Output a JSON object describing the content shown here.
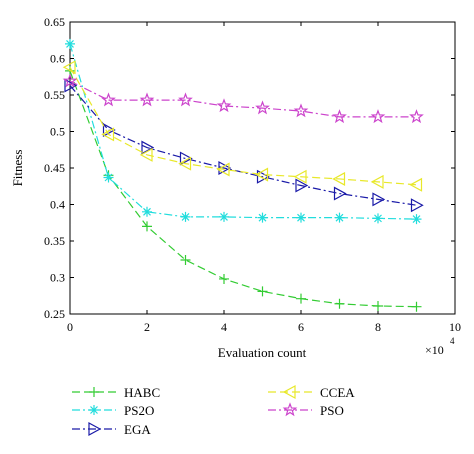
{
  "chart_data": {
    "type": "line",
    "title": "",
    "xlabel": "Evaluation count",
    "ylabel": "Fitness",
    "x_multiplier_label": "×10",
    "x_multiplier_exponent": "4",
    "xlim": [
      0,
      10
    ],
    "ylim": [
      0.25,
      0.65
    ],
    "x_ticks": [
      "0",
      "2",
      "4",
      "6",
      "8",
      "10"
    ],
    "y_ticks": [
      "0.25",
      "0.3",
      "0.35",
      "0.4",
      "0.45",
      "0.5",
      "0.55",
      "0.6",
      "0.65"
    ],
    "grid": false,
    "legend_position": "bottom",
    "series": [
      {
        "name": "HABC",
        "color": "#33cc33",
        "marker": "plus",
        "dash": "8,4",
        "x": [
          0,
          1,
          2,
          3,
          4,
          5,
          6,
          7,
          8,
          9
        ],
        "y": [
          0.583,
          0.44,
          0.37,
          0.324,
          0.298,
          0.281,
          0.271,
          0.264,
          0.261,
          0.26
        ]
      },
      {
        "name": "PS2O",
        "color": "#22dddd",
        "marker": "asterisk",
        "dash": "8,3,2,3",
        "x": [
          0,
          1,
          2,
          3,
          4,
          5,
          6,
          7,
          8,
          9
        ],
        "y": [
          0.62,
          0.437,
          0.39,
          0.383,
          0.383,
          0.382,
          0.382,
          0.382,
          0.381,
          0.38
        ]
      },
      {
        "name": "EGA",
        "color": "#1a1aa8",
        "marker": "triangle-right",
        "dash": "8,3,2,3",
        "x": [
          0,
          1,
          2,
          3,
          4,
          5,
          6,
          7,
          8,
          9
        ],
        "y": [
          0.563,
          0.502,
          0.478,
          0.463,
          0.45,
          0.438,
          0.426,
          0.415,
          0.407,
          0.399
        ]
      },
      {
        "name": "CCEA",
        "color": "#e8e82a",
        "marker": "triangle-left",
        "dash": "8,4",
        "x": [
          0,
          1,
          2,
          3,
          4,
          5,
          6,
          7,
          8,
          9
        ],
        "y": [
          0.588,
          0.496,
          0.468,
          0.456,
          0.448,
          0.441,
          0.438,
          0.435,
          0.431,
          0.427
        ]
      },
      {
        "name": "PSO",
        "color": "#cc44cc",
        "marker": "star",
        "dash": "8,3,2,3",
        "x": [
          0,
          1,
          2,
          3,
          4,
          5,
          6,
          7,
          8,
          9
        ],
        "y": [
          0.569,
          0.543,
          0.543,
          0.543,
          0.535,
          0.532,
          0.528,
          0.52,
          0.52,
          0.52
        ]
      }
    ]
  }
}
